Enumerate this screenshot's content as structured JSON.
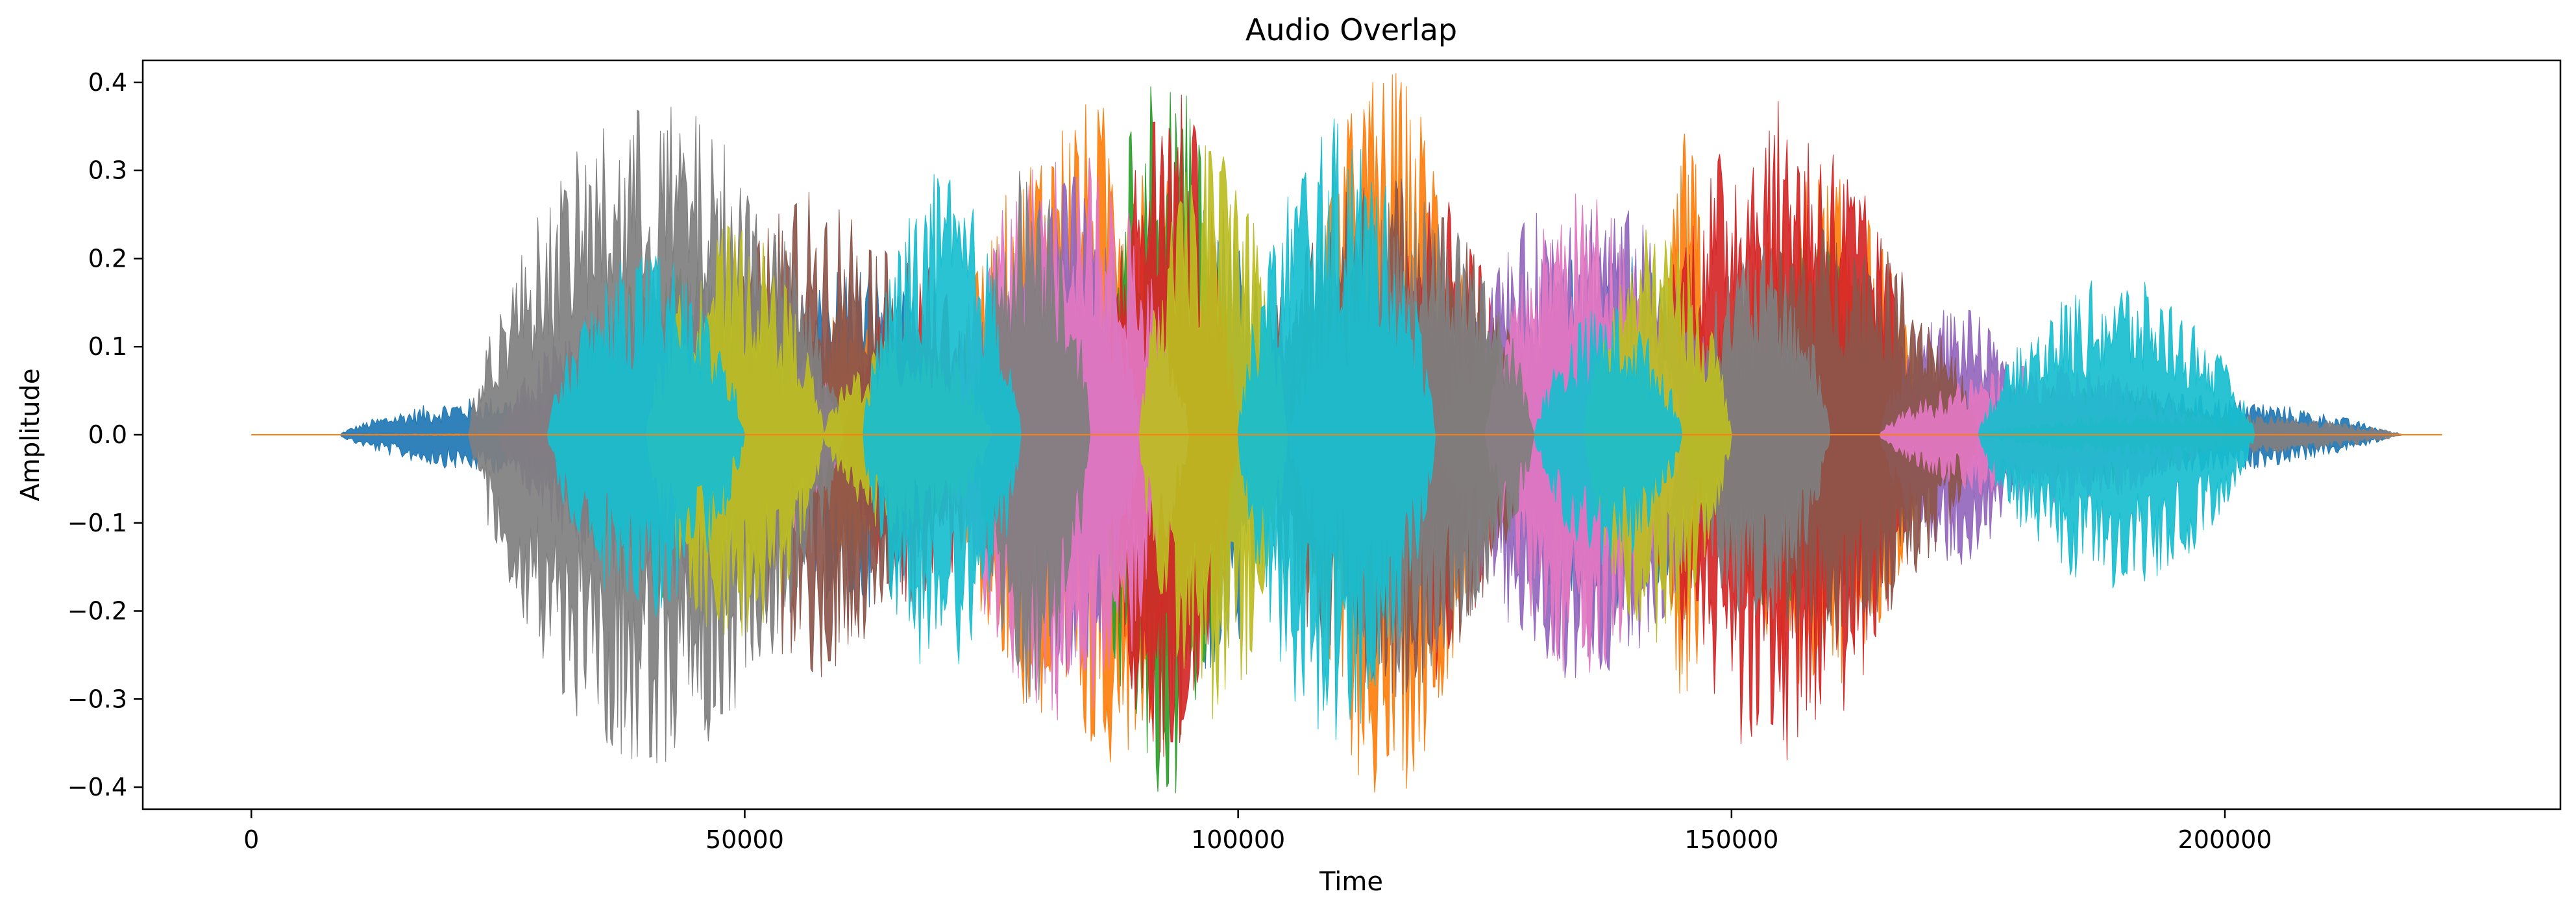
{
  "chart_data": {
    "type": "line",
    "title": "Audio Overlap",
    "xlabel": "Time",
    "ylabel": "Amplitude",
    "xlim": [
      -11000,
      234000
    ],
    "ylim": [
      -0.425,
      0.425
    ],
    "xticks": [
      0,
      50000,
      100000,
      150000,
      200000
    ],
    "yticks": [
      -0.4,
      -0.3,
      -0.2,
      -0.1,
      0.0,
      0.1,
      0.2,
      0.3,
      0.4
    ],
    "ytick_labels": [
      "−0.4",
      "−0.3",
      "−0.2",
      "−0.1",
      "0.0",
      "0.1",
      "0.2",
      "0.3",
      "0.4"
    ],
    "grid": false,
    "legend": "none",
    "series": [
      {
        "color": "#1f77b4",
        "segments": [
          [
            9000,
            46000,
            0.045
          ],
          [
            50000,
            72000,
            0.2
          ],
          [
            90000,
            105000,
            0.28
          ],
          [
            125000,
            150000,
            0.22
          ],
          [
            160000,
            217000,
            0.05
          ]
        ]
      },
      {
        "color": "#ff7f0e",
        "segments": [
          [
            55000,
            66000,
            0.15
          ],
          [
            70000,
            100000,
            0.38
          ],
          [
            105000,
            125000,
            0.42
          ],
          [
            143000,
            148000,
            0.35
          ],
          [
            148000,
            170000,
            0.3
          ],
          [
            0,
            222000,
            0.002
          ]
        ]
      },
      {
        "color": "#2ca02c",
        "segments": [
          [
            30000,
            55000,
            0.19
          ],
          [
            85000,
            100000,
            0.42
          ],
          [
            145000,
            170000,
            0.22
          ]
        ]
      },
      {
        "color": "#d62728",
        "segments": [
          [
            28000,
            48000,
            0.14
          ],
          [
            60000,
            75000,
            0.2
          ],
          [
            86000,
            100000,
            0.4
          ],
          [
            112000,
            128000,
            0.28
          ],
          [
            140000,
            170000,
            0.38
          ],
          [
            170000,
            190000,
            0.06
          ]
        ]
      },
      {
        "color": "#9467bd",
        "segments": [
          [
            25000,
            60000,
            0.18
          ],
          [
            75000,
            90000,
            0.3
          ],
          [
            120000,
            150000,
            0.28
          ],
          [
            165000,
            180000,
            0.15
          ]
        ]
      },
      {
        "color": "#8c564b",
        "segments": [
          [
            45000,
            70000,
            0.28
          ],
          [
            100000,
            130000,
            0.3
          ],
          [
            145000,
            175000,
            0.24
          ],
          [
            175000,
            200000,
            0.06
          ]
        ]
      },
      {
        "color": "#e377c2",
        "segments": [
          [
            40000,
            60000,
            0.15
          ],
          [
            70000,
            95000,
            0.33
          ],
          [
            125000,
            145000,
            0.28
          ],
          [
            165000,
            200000,
            0.08
          ]
        ]
      },
      {
        "color": "#7f7f7f",
        "segments": [
          [
            22000,
            60000,
            0.38
          ],
          [
            73000,
            85000,
            0.32
          ],
          [
            105000,
            130000,
            0.28
          ],
          [
            145000,
            160000,
            0.22
          ],
          [
            175000,
            218000,
            0.025
          ]
        ]
      },
      {
        "color": "#bcbd22",
        "segments": [
          [
            40000,
            58000,
            0.24
          ],
          [
            58000,
            75000,
            0.12
          ],
          [
            90000,
            105000,
            0.34
          ],
          [
            135000,
            150000,
            0.24
          ]
        ]
      },
      {
        "color": "#17becf",
        "segments": [
          [
            30000,
            50000,
            0.21
          ],
          [
            62000,
            78000,
            0.3
          ],
          [
            100000,
            120000,
            0.36
          ],
          [
            130000,
            145000,
            0.15
          ],
          [
            175000,
            203000,
            0.18
          ]
        ]
      }
    ]
  },
  "labels": {
    "title": "Audio Overlap",
    "xlabel": "Time",
    "ylabel": "Amplitude"
  }
}
